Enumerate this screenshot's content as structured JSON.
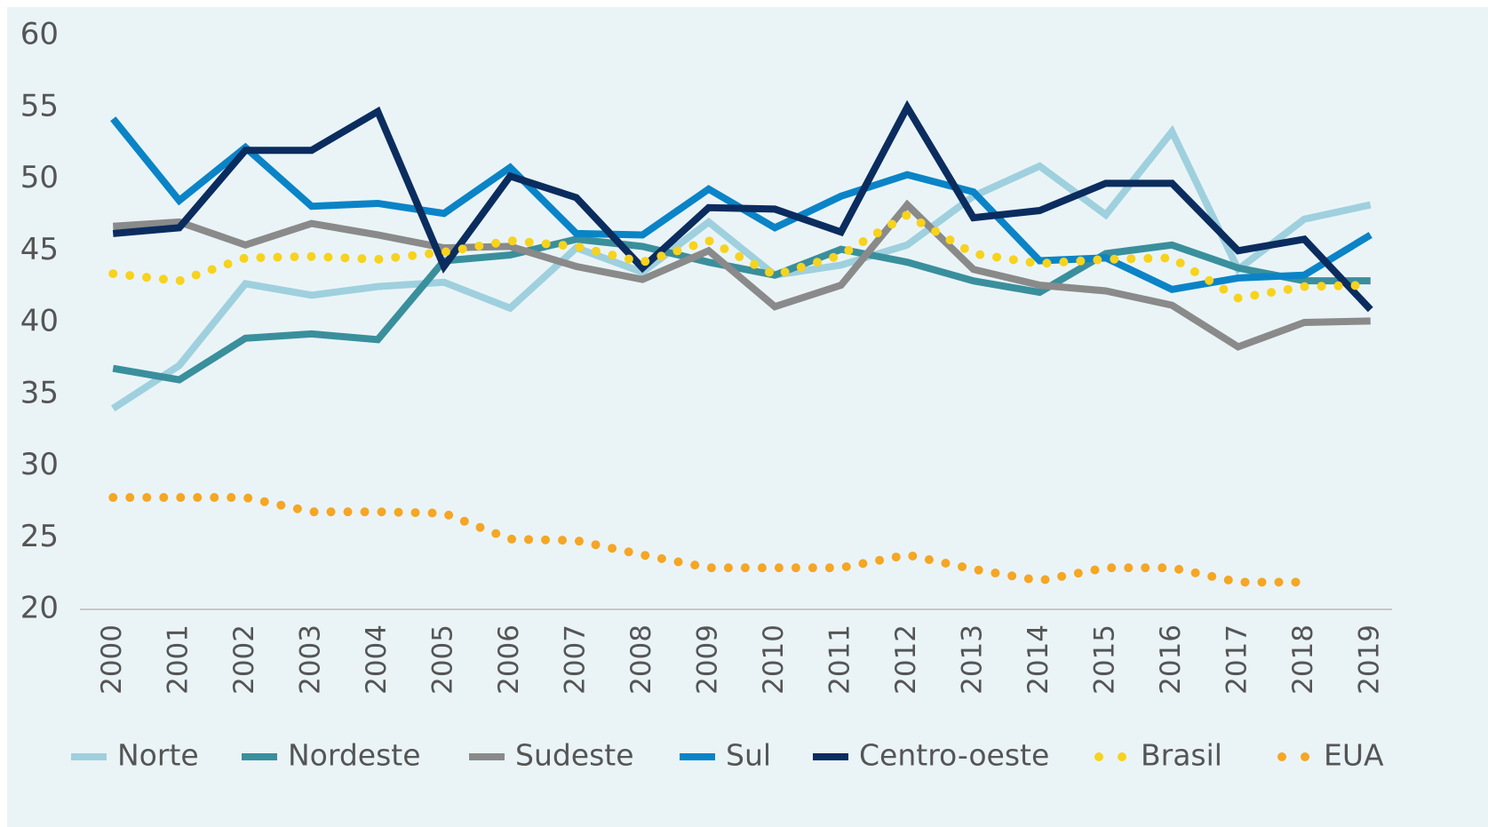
{
  "chart_data": {
    "type": "line",
    "categories": [
      "2000",
      "2001",
      "2002",
      "2003",
      "2004",
      "2005",
      "2006",
      "2007",
      "2008",
      "2009",
      "2010",
      "2011",
      "2012",
      "2013",
      "2014",
      "2015",
      "2016",
      "2017",
      "2018",
      "2019"
    ],
    "ylim": [
      20,
      60
    ],
    "yticks": [
      20,
      25,
      30,
      35,
      40,
      45,
      50,
      55,
      60
    ],
    "grid": false,
    "legend": "bottom",
    "series": [
      {
        "name": "Norte",
        "color": "#9fd0de",
        "style": "solid",
        "values": [
          34,
          37,
          42.7,
          41.9,
          42.5,
          42.8,
          41,
          45.2,
          43.5,
          47,
          43.3,
          44,
          45.4,
          48.8,
          50.9,
          47.5,
          53.3,
          43.7,
          47.2,
          48.2
        ]
      },
      {
        "name": "Nordeste",
        "color": "#3a8f9c",
        "style": "solid",
        "values": [
          36.8,
          36,
          38.9,
          39.2,
          38.8,
          44.3,
          44.7,
          45.8,
          45.3,
          44.2,
          43.3,
          45.1,
          44.2,
          42.9,
          42.1,
          44.8,
          45.4,
          43.8,
          42.9,
          42.9
        ]
      },
      {
        "name": "Sudeste",
        "color": "#8a8a8a",
        "style": "solid",
        "values": [
          46.7,
          47,
          45.4,
          46.9,
          46.1,
          45.2,
          45.3,
          43.9,
          43,
          45,
          41.1,
          42.6,
          48.2,
          43.7,
          42.6,
          42.2,
          41.2,
          38.3,
          40,
          40.1
        ]
      },
      {
        "name": "Sul",
        "color": "#0a84c7",
        "style": "solid",
        "values": [
          54.2,
          48.5,
          52.2,
          48.1,
          48.3,
          47.6,
          50.8,
          46.2,
          46.1,
          49.3,
          46.6,
          48.8,
          50.3,
          49.1,
          44.3,
          44.5,
          42.3,
          43.1,
          43.3,
          46.1
        ]
      },
      {
        "name": "Centro-oeste",
        "color": "#0b2c5e",
        "style": "solid",
        "values": [
          46.2,
          46.6,
          52,
          52,
          54.7,
          43.9,
          50.2,
          48.7,
          43.8,
          48,
          47.9,
          46.3,
          55,
          47.3,
          47.8,
          49.7,
          49.7,
          45,
          45.8,
          40.9
        ]
      },
      {
        "name": "Brasil",
        "color": "#f7d31c",
        "style": "dotted",
        "values": [
          43.4,
          42.9,
          44.5,
          44.6,
          44.4,
          44.9,
          45.7,
          45.3,
          44.2,
          45.7,
          43.3,
          44.7,
          47.5,
          44.8,
          44.1,
          44.4,
          44.5,
          41.7,
          42.5,
          42.6
        ]
      },
      {
        "name": "EUA",
        "color": "#f5a623",
        "style": "dotted",
        "values": [
          27.8,
          27.8,
          27.8,
          26.8,
          26.8,
          26.7,
          24.9,
          24.8,
          23.8,
          22.9,
          22.9,
          22.9,
          23.8,
          22.8,
          22,
          22.9,
          22.9,
          21.9,
          21.9,
          null
        ]
      }
    ]
  }
}
